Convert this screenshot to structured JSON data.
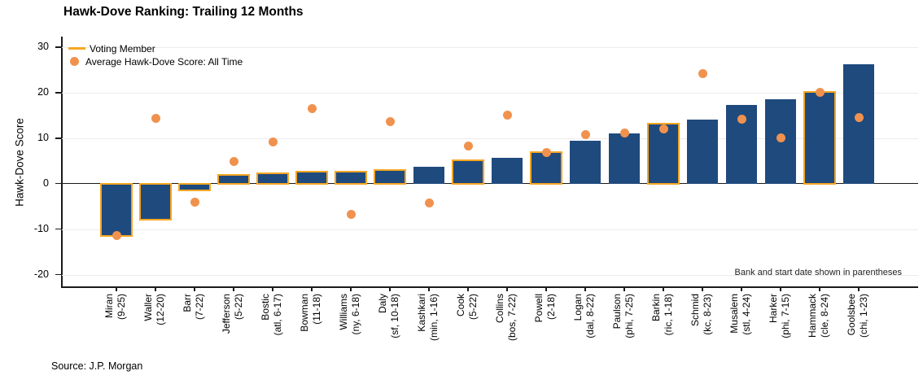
{
  "title": "Hawk-Dove Ranking: Trailing 12 Months",
  "source": "Source: J.P. Morgan",
  "colors": {
    "bar": "#1F4A7D",
    "voting_outline": "#F5A623",
    "avg_dot": "#F0924E",
    "gridline": "#ececec",
    "axis": "#1a1a1a"
  },
  "chart_data": {
    "type": "bar",
    "title": "Hawk-Dove Ranking: Trailing 12 Months",
    "xlabel": "",
    "ylabel": "Hawk-Dove Score",
    "ylim": [
      -22.6,
      32.3
    ],
    "yticks": [
      30,
      20,
      10,
      0,
      -10,
      -20
    ],
    "grid": "horizontal",
    "annotation": "Bank and start date shown in parentheses",
    "legend": {
      "position": "top-left",
      "items": [
        {
          "label": "Voting Member",
          "marker": "line"
        },
        {
          "label": "Average Hawk-Dove Score: All Time",
          "marker": "dot"
        }
      ]
    },
    "categories": [
      "Miran",
      "Waller",
      "Barr",
      "Jefferson",
      "Bostic",
      "Bowman",
      "Williams",
      "Daly",
      "Kashkari",
      "Cook",
      "Collins",
      "Powell",
      "Logan",
      "Paulson",
      "Barkin",
      "Schmid",
      "Musalem",
      "Harker",
      "Hammack",
      "Goolsbee"
    ],
    "category_details": [
      "(9-25)",
      "(12-20)",
      "(7-22)",
      "(5-22)",
      "(atl, 6-17)",
      "(11-18)",
      "(ny, 6-18)",
      "(sf, 10-18)",
      "(min, 1-16)",
      "(5-22)",
      "(bos, 7-22)",
      "(2-18)",
      "(dal, 8-22)",
      "(phi, 7-25)",
      "(ric, 1-18)",
      "(kc, 8-23)",
      "(stl, 4-24)",
      "(phi, 7-15)",
      "(cle, 8-24)",
      "(chi, 1-23)"
    ],
    "series": [
      {
        "name": "Hawk-Dove Score: Trailing 12 Months",
        "type": "bar",
        "values": [
          -11.5,
          -8.0,
          -1.6,
          1.9,
          2.3,
          2.6,
          2.6,
          2.9,
          3.7,
          5.2,
          5.6,
          7.0,
          9.4,
          11.0,
          13.1,
          14.0,
          17.2,
          18.6,
          20.2,
          26.3
        ]
      },
      {
        "name": "Average Hawk-Dove Score: All Time",
        "type": "scatter",
        "values": [
          -11.5,
          14.4,
          -4.0,
          4.9,
          9.2,
          16.4,
          -6.8,
          13.7,
          -4.2,
          8.2,
          15.0,
          6.8,
          10.8,
          11.1,
          12.0,
          24.2,
          14.2,
          10.1,
          20.1,
          14.5
        ]
      }
    ],
    "voting_member_outlined": [
      true,
      true,
      true,
      true,
      true,
      true,
      true,
      true,
      false,
      true,
      false,
      true,
      false,
      false,
      true,
      false,
      false,
      false,
      true,
      false
    ]
  }
}
